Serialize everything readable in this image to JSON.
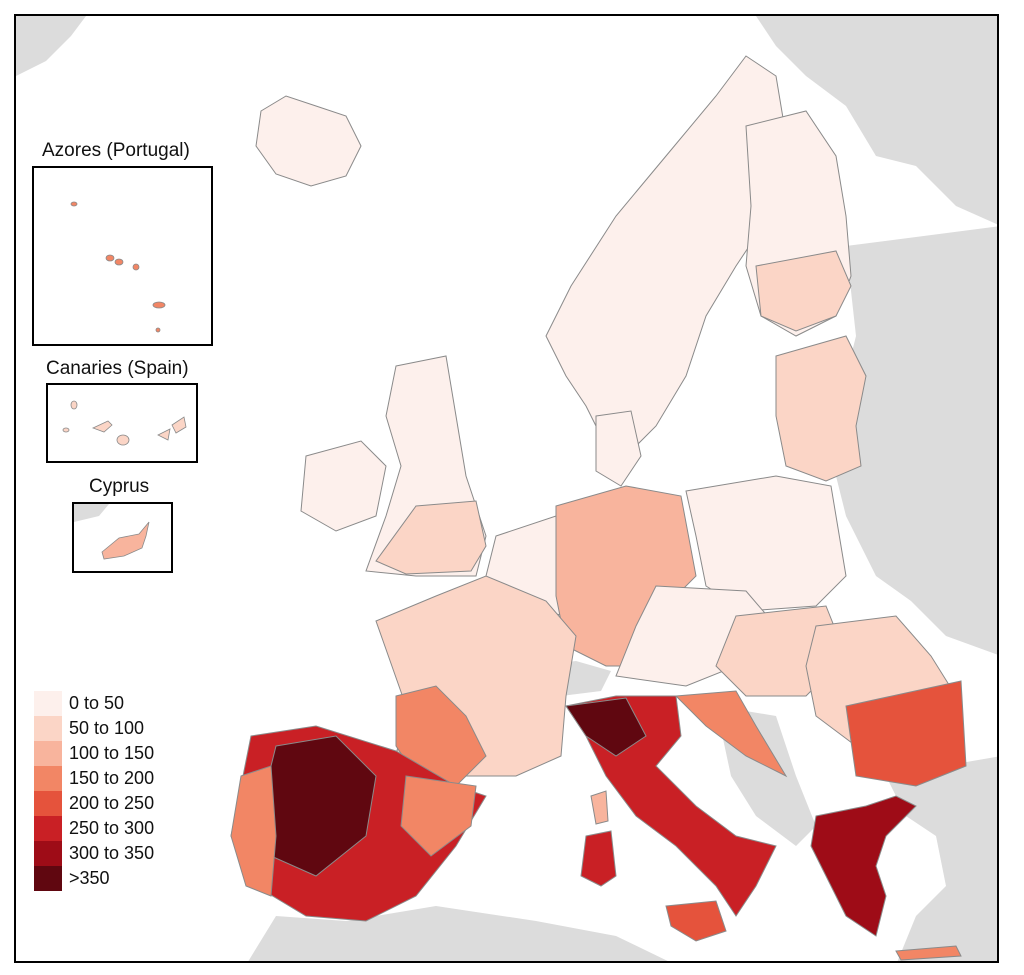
{
  "insets": {
    "azores": "Azores (Portugal)",
    "canaries": "Canaries (Spain)",
    "cyprus": "Cyprus"
  },
  "legend": [
    {
      "label": "0 to 50",
      "color": "#fdf0ec"
    },
    {
      "label": "50 to 100",
      "color": "#fbd5c6"
    },
    {
      "label": "100 to 150",
      "color": "#f8b49d"
    },
    {
      "label": "150 to 200",
      "color": "#f28665"
    },
    {
      "label": "200 to 250",
      "color": "#e5533c"
    },
    {
      "label": "250 to 300",
      "color": "#c92025"
    },
    {
      "label": "300 to 350",
      "color": "#9e0c17"
    },
    {
      "label": ">350",
      "color": "#600710"
    }
  ],
  "colors": {
    "non_eu": "#dcdcdc",
    "sea": "#ffffff",
    "border": "#8a8a8a"
  }
}
